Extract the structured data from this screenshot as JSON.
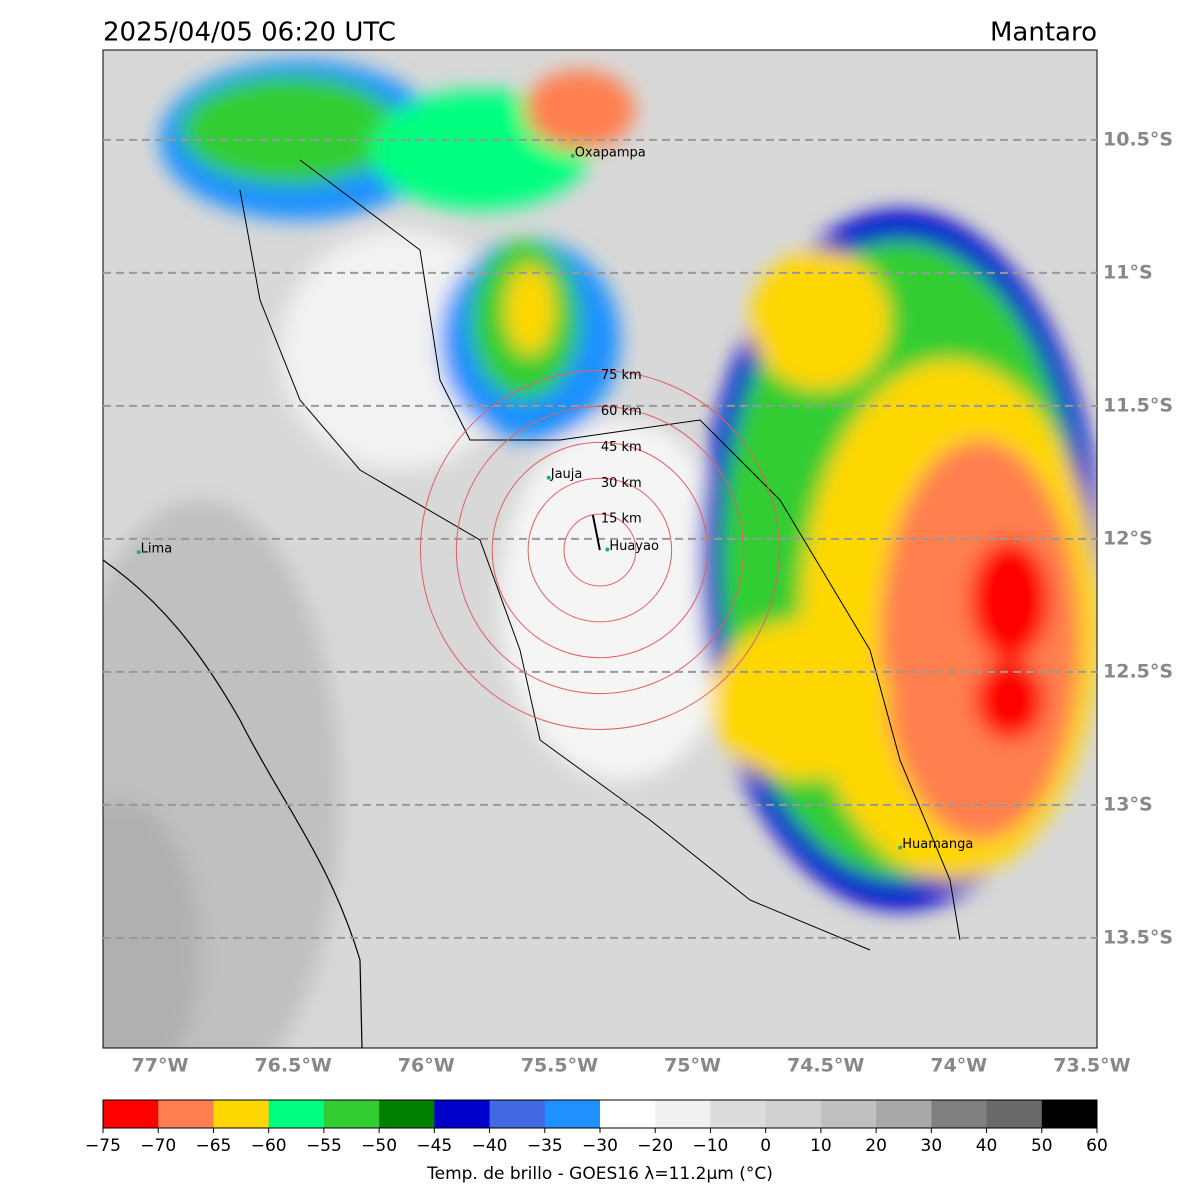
{
  "chart_data": {
    "type": "map",
    "title": "2025/04/05 06:20 UTC",
    "location": "Mantaro",
    "lonlim": [
      -77.214,
      -73.481
    ],
    "latlim": [
      -13.914,
      -10.162
    ],
    "lat_ticks": [
      {
        "value": -10.5,
        "label": "10.5°S"
      },
      {
        "value": -11,
        "label": "11°S"
      },
      {
        "value": -11.5,
        "label": "11.5°S"
      },
      {
        "value": -12,
        "label": "12°S"
      },
      {
        "value": -12.5,
        "label": "12.5°S"
      },
      {
        "value": -13,
        "label": "13°S"
      },
      {
        "value": -13.5,
        "label": "13.5°S"
      }
    ],
    "lon_ticks": [
      {
        "value": -77,
        "label": "77°W"
      },
      {
        "value": -76.5,
        "label": "76.5°W"
      },
      {
        "value": -76,
        "label": "76°W"
      },
      {
        "value": -75.5,
        "label": "75.5°W"
      },
      {
        "value": -75,
        "label": "75°W"
      },
      {
        "value": -74.5,
        "label": "74.5°W"
      },
      {
        "value": -74,
        "label": "74°W"
      },
      {
        "value": -73.5,
        "label": "73.5°W"
      }
    ],
    "places": [
      {
        "name": "Oxapampa",
        "lon": -75.45,
        "lat": -10.56
      },
      {
        "name": "Jauja",
        "lon": -75.54,
        "lat": -11.77
      },
      {
        "name": "Huayao",
        "lon": -75.32,
        "lat": -12.04
      },
      {
        "name": "Lima",
        "lon": -77.08,
        "lat": -12.05
      },
      {
        "name": "Huamanga",
        "lon": -74.22,
        "lat": -13.16
      }
    ],
    "rings": {
      "center_lon": -75.348,
      "center_lat": -12.042,
      "color": "#e06060",
      "radii_km": [
        15,
        30,
        45,
        60,
        75
      ],
      "labels": [
        "15 km",
        "30 km",
        "45 km",
        "60 km",
        "75 km"
      ]
    },
    "colorbar": {
      "label": "Temp. de brillo - GOES16 λ=11.2μm (°C)",
      "ticks": [
        {
          "value": -75,
          "label": "−75"
        },
        {
          "value": -70,
          "label": "−70"
        },
        {
          "value": -65,
          "label": "−65"
        },
        {
          "value": -60,
          "label": "−60"
        },
        {
          "value": -55,
          "label": "−55"
        },
        {
          "value": -50,
          "label": "−50"
        },
        {
          "value": -45,
          "label": "−45"
        },
        {
          "value": -40,
          "label": "−40"
        },
        {
          "value": -35,
          "label": "−35"
        },
        {
          "value": -30,
          "label": "−30"
        },
        {
          "value": -20,
          "label": "−20"
        },
        {
          "value": -10,
          "label": "−10"
        },
        0,
        10,
        20,
        30,
        40,
        50,
        60
      ],
      "colors": [
        "#ff0000",
        "#ff7f50",
        "#ffd700",
        "#00ff7f",
        "#32cd32",
        "#008000",
        "#0000cd",
        "#4169e1",
        "#1e90ff",
        "#ffffff",
        "#f0f0f0",
        "#dcdcdc",
        "#d0d0d0",
        "#c0c0c0",
        "#a9a9a9",
        "#808080",
        "#696969",
        "#000000"
      ]
    }
  }
}
